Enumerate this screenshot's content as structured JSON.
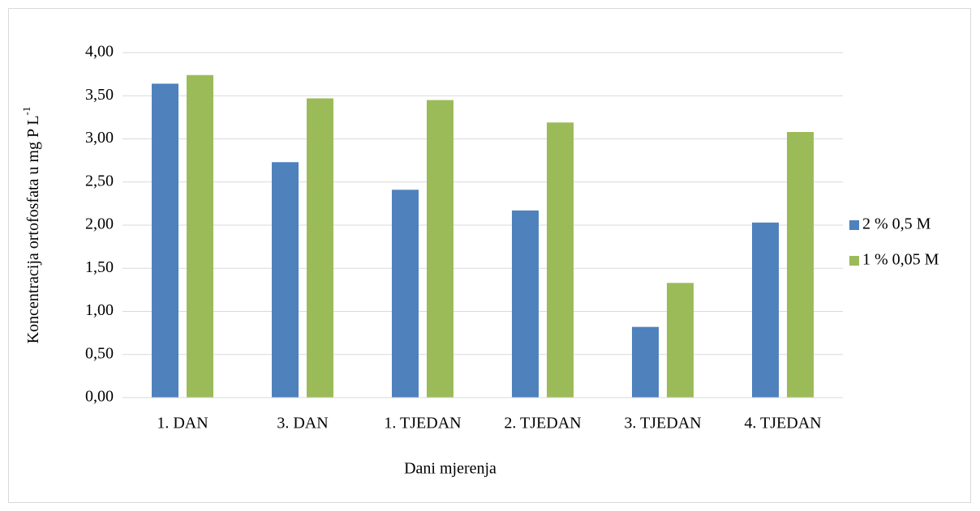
{
  "chart_data": {
    "type": "bar",
    "y_label": "Koncentracija ortofosfata u mg P L",
    "y_label_superscript": "-1",
    "x_label": "Dani mjerenja",
    "categories": [
      "1. DAN",
      "3. DAN",
      "1. TJEDAN",
      "2. TJEDAN",
      "3. TJEDAN",
      "4. TJEDAN"
    ],
    "series": [
      {
        "name": "2 % 0,5 M",
        "color": "#4f81bd",
        "values": [
          3.64,
          2.73,
          2.41,
          2.17,
          0.82,
          2.03
        ]
      },
      {
        "name": "1 % 0,05 M",
        "color": "#9bbb59",
        "values": [
          3.74,
          3.47,
          3.45,
          3.19,
          1.33,
          3.08
        ]
      }
    ],
    "ylim": [
      0,
      4
    ],
    "yticks": [
      {
        "value": 0,
        "label": "0,00"
      },
      {
        "value": 0.5,
        "label": "0,50"
      },
      {
        "value": 1,
        "label": "1,00"
      },
      {
        "value": 1.5,
        "label": "1,50"
      },
      {
        "value": 2,
        "label": "2,00"
      },
      {
        "value": 2.5,
        "label": "2,50"
      },
      {
        "value": 3,
        "label": "3,00"
      },
      {
        "value": 3.5,
        "label": "3,50"
      },
      {
        "value": 4,
        "label": "4,00"
      }
    ],
    "grid": true,
    "legend": "right"
  }
}
